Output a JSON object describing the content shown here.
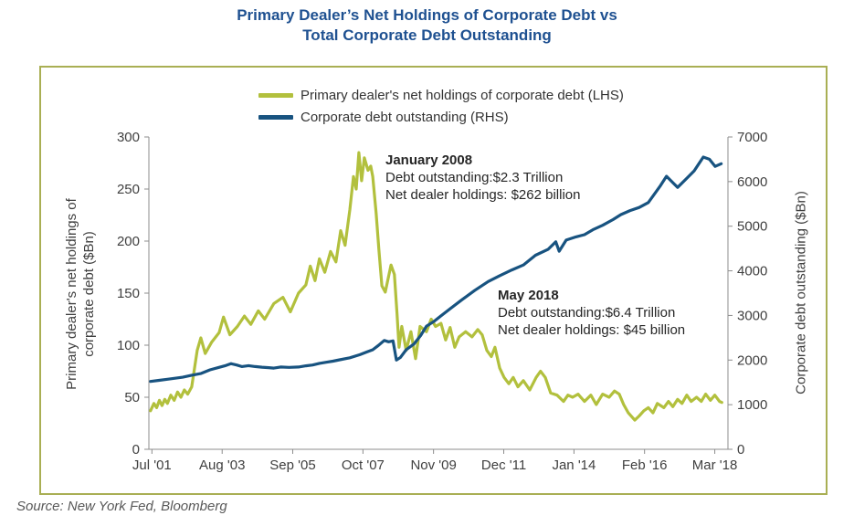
{
  "page": {
    "title_line1": "Primary Dealer’s Net Holdings of Corporate Debt vs",
    "title_line2": "Total Corporate Debt Outstanding",
    "source": "Source: New York Fed, Bloomberg"
  },
  "colors": {
    "green_line": "#b2c03d",
    "blue_line": "#185380",
    "title_text": "#1f5191",
    "card_border": "#a9af54",
    "axis_line": "#8c8c8c",
    "tick_text": "#3f3f3f"
  },
  "chart_data": {
    "type": "line",
    "title": "Primary Dealer’s Net Holdings of Corporate Debt vs Total Corporate Debt Outstanding",
    "grid": false,
    "legend_position": "top-center",
    "x_range": [
      2001.45,
      2018.6
    ],
    "x_ticks": [
      {
        "v": 2001.54,
        "label": "Jul '01"
      },
      {
        "v": 2003.62,
        "label": "Aug '03"
      },
      {
        "v": 2005.71,
        "label": "Sep '05"
      },
      {
        "v": 2007.79,
        "label": "Oct '07"
      },
      {
        "v": 2009.88,
        "label": "Nov '09"
      },
      {
        "v": 2011.96,
        "label": "Dec '11"
      },
      {
        "v": 2014.04,
        "label": "Jan '14"
      },
      {
        "v": 2016.13,
        "label": "Feb '16"
      },
      {
        "v": 2018.21,
        "label": "Mar '18"
      }
    ],
    "left_axis": {
      "label_line1": "Primary dealer's net holdings of",
      "label_line2": "corporate debt ($Bn)",
      "range": [
        0,
        300
      ],
      "ticks": [
        0,
        50,
        100,
        150,
        200,
        250,
        300
      ]
    },
    "right_axis": {
      "label": "Corporate debt outstanding ($Bn)",
      "range": [
        0,
        7000
      ],
      "ticks": [
        0,
        1000,
        2000,
        3000,
        4000,
        5000,
        6000,
        7000
      ]
    },
    "legend": [
      {
        "label": "Primary dealer's net holdings of corporate debt (LHS)",
        "color": "#b2c03d"
      },
      {
        "label": "Corporate debt outstanding (RHS)",
        "color": "#185380"
      }
    ],
    "annotations": [
      {
        "title": "January 2008",
        "line1": "Debt outstanding:$2.3 Trillion",
        "line2": "Net dealer holdings: $262 billion"
      },
      {
        "title": "May 2018",
        "line1": "Debt outstanding:$6.4 Trillion",
        "line2": "Net dealer holdings: $45 billion"
      }
    ],
    "series": [
      {
        "name": "Primary dealer's net holdings of corporate debt (LHS)",
        "axis": "left",
        "color": "#b2c03d",
        "points": [
          [
            2001.5,
            37
          ],
          [
            2001.6,
            44
          ],
          [
            2001.68,
            40
          ],
          [
            2001.76,
            47
          ],
          [
            2001.84,
            42
          ],
          [
            2001.92,
            48
          ],
          [
            2002.0,
            44
          ],
          [
            2002.1,
            52
          ],
          [
            2002.2,
            47
          ],
          [
            2002.3,
            55
          ],
          [
            2002.4,
            50
          ],
          [
            2002.5,
            57
          ],
          [
            2002.6,
            53
          ],
          [
            2002.72,
            60
          ],
          [
            2002.88,
            95
          ],
          [
            2002.99,
            107
          ],
          [
            2003.12,
            92
          ],
          [
            2003.31,
            103
          ],
          [
            2003.53,
            112
          ],
          [
            2003.66,
            127
          ],
          [
            2003.85,
            110
          ],
          [
            2004.07,
            118
          ],
          [
            2004.28,
            128
          ],
          [
            2004.47,
            120
          ],
          [
            2004.69,
            133
          ],
          [
            2004.88,
            125
          ],
          [
            2005.15,
            140
          ],
          [
            2005.42,
            146
          ],
          [
            2005.64,
            132
          ],
          [
            2005.88,
            150
          ],
          [
            2006.1,
            158
          ],
          [
            2006.23,
            176
          ],
          [
            2006.37,
            162
          ],
          [
            2006.5,
            183
          ],
          [
            2006.66,
            170
          ],
          [
            2006.83,
            190
          ],
          [
            2006.99,
            180
          ],
          [
            2007.13,
            210
          ],
          [
            2007.26,
            196
          ],
          [
            2007.4,
            230
          ],
          [
            2007.51,
            262
          ],
          [
            2007.59,
            250
          ],
          [
            2007.67,
            285
          ],
          [
            2007.75,
            258
          ],
          [
            2007.83,
            280
          ],
          [
            2007.94,
            268
          ],
          [
            2008.02,
            272
          ],
          [
            2008.08,
            262
          ],
          [
            2008.18,
            227
          ],
          [
            2008.26,
            192
          ],
          [
            2008.35,
            157
          ],
          [
            2008.45,
            151
          ],
          [
            2008.62,
            177
          ],
          [
            2008.72,
            168
          ],
          [
            2008.8,
            130
          ],
          [
            2008.86,
            98
          ],
          [
            2008.94,
            118
          ],
          [
            2009.07,
            95
          ],
          [
            2009.21,
            113
          ],
          [
            2009.35,
            87
          ],
          [
            2009.48,
            118
          ],
          [
            2009.67,
            113
          ],
          [
            2009.81,
            125
          ],
          [
            2009.94,
            118
          ],
          [
            2010.1,
            121
          ],
          [
            2010.24,
            105
          ],
          [
            2010.37,
            117
          ],
          [
            2010.51,
            98
          ],
          [
            2010.64,
            108
          ],
          [
            2010.83,
            113
          ],
          [
            2011.02,
            108
          ],
          [
            2011.19,
            115
          ],
          [
            2011.32,
            110
          ],
          [
            2011.46,
            95
          ],
          [
            2011.59,
            89
          ],
          [
            2011.7,
            98
          ],
          [
            2011.84,
            78
          ],
          [
            2011.97,
            69
          ],
          [
            2012.11,
            63
          ],
          [
            2012.24,
            69
          ],
          [
            2012.38,
            60
          ],
          [
            2012.54,
            66
          ],
          [
            2012.73,
            57
          ],
          [
            2012.92,
            69
          ],
          [
            2013.05,
            75
          ],
          [
            2013.19,
            69
          ],
          [
            2013.35,
            54
          ],
          [
            2013.54,
            52
          ],
          [
            2013.73,
            46
          ],
          [
            2013.86,
            52
          ],
          [
            2014.0,
            50
          ],
          [
            2014.16,
            53
          ],
          [
            2014.35,
            46
          ],
          [
            2014.54,
            52
          ],
          [
            2014.7,
            43
          ],
          [
            2014.89,
            53
          ],
          [
            2015.08,
            50
          ],
          [
            2015.24,
            56
          ],
          [
            2015.38,
            53
          ],
          [
            2015.51,
            43
          ],
          [
            2015.65,
            35
          ],
          [
            2015.84,
            28
          ],
          [
            2015.97,
            32
          ],
          [
            2016.11,
            37
          ],
          [
            2016.24,
            40
          ],
          [
            2016.38,
            35
          ],
          [
            2016.51,
            44
          ],
          [
            2016.7,
            40
          ],
          [
            2016.84,
            46
          ],
          [
            2016.97,
            41
          ],
          [
            2017.11,
            48
          ],
          [
            2017.24,
            44
          ],
          [
            2017.38,
            52
          ],
          [
            2017.51,
            46
          ],
          [
            2017.67,
            50
          ],
          [
            2017.81,
            46
          ],
          [
            2017.94,
            53
          ],
          [
            2018.08,
            47
          ],
          [
            2018.21,
            52
          ],
          [
            2018.35,
            46
          ],
          [
            2018.42,
            45
          ]
        ]
      },
      {
        "name": "Corporate debt outstanding (RHS)",
        "axis": "right",
        "color": "#185380",
        "points": [
          [
            2001.5,
            1520
          ],
          [
            2001.75,
            1545
          ],
          [
            2002.0,
            1570
          ],
          [
            2002.25,
            1595
          ],
          [
            2002.45,
            1615
          ],
          [
            2002.7,
            1655
          ],
          [
            2003.0,
            1700
          ],
          [
            2003.26,
            1780
          ],
          [
            2003.5,
            1830
          ],
          [
            2003.7,
            1870
          ],
          [
            2003.88,
            1920
          ],
          [
            2004.05,
            1890
          ],
          [
            2004.2,
            1855
          ],
          [
            2004.4,
            1875
          ],
          [
            2004.6,
            1855
          ],
          [
            2004.8,
            1840
          ],
          [
            2005.0,
            1830
          ],
          [
            2005.15,
            1820
          ],
          [
            2005.35,
            1845
          ],
          [
            2005.6,
            1835
          ],
          [
            2005.88,
            1845
          ],
          [
            2006.1,
            1870
          ],
          [
            2006.3,
            1890
          ],
          [
            2006.5,
            1925
          ],
          [
            2006.7,
            1950
          ],
          [
            2006.9,
            1975
          ],
          [
            2007.1,
            2005
          ],
          [
            2007.4,
            2050
          ],
          [
            2007.7,
            2120
          ],
          [
            2007.9,
            2180
          ],
          [
            2008.08,
            2230
          ],
          [
            2008.25,
            2330
          ],
          [
            2008.42,
            2440
          ],
          [
            2008.55,
            2410
          ],
          [
            2008.68,
            2430
          ],
          [
            2008.78,
            2000
          ],
          [
            2008.9,
            2060
          ],
          [
            2009.07,
            2230
          ],
          [
            2009.3,
            2360
          ],
          [
            2009.5,
            2550
          ],
          [
            2009.67,
            2760
          ],
          [
            2009.9,
            2870
          ],
          [
            2010.1,
            2990
          ],
          [
            2010.37,
            3150
          ],
          [
            2010.7,
            3340
          ],
          [
            2011.1,
            3560
          ],
          [
            2011.5,
            3760
          ],
          [
            2011.84,
            3890
          ],
          [
            2012.2,
            4020
          ],
          [
            2012.54,
            4130
          ],
          [
            2012.9,
            4350
          ],
          [
            2013.27,
            4480
          ],
          [
            2013.5,
            4650
          ],
          [
            2013.6,
            4440
          ],
          [
            2013.81,
            4690
          ],
          [
            2014.1,
            4760
          ],
          [
            2014.35,
            4810
          ],
          [
            2014.6,
            4920
          ],
          [
            2014.89,
            5020
          ],
          [
            2015.2,
            5150
          ],
          [
            2015.43,
            5260
          ],
          [
            2015.7,
            5350
          ],
          [
            2015.97,
            5420
          ],
          [
            2016.24,
            5530
          ],
          [
            2016.6,
            5910
          ],
          [
            2016.78,
            6120
          ],
          [
            2017.0,
            5950
          ],
          [
            2017.11,
            5870
          ],
          [
            2017.35,
            6050
          ],
          [
            2017.6,
            6240
          ],
          [
            2017.87,
            6550
          ],
          [
            2018.05,
            6500
          ],
          [
            2018.22,
            6340
          ],
          [
            2018.4,
            6400
          ]
        ]
      }
    ]
  }
}
